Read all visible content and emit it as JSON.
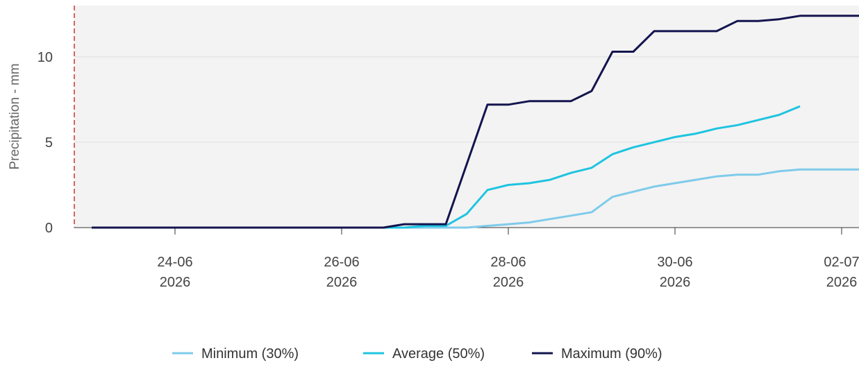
{
  "chart_data": {
    "type": "line",
    "ylabel": "Precipitation - mm",
    "ylim": [
      0,
      13
    ],
    "y_ticks": [
      0,
      5,
      10
    ],
    "x_range": [
      "2026-06-22T19:00",
      "2026-07-02T05:00"
    ],
    "x_ticks": [
      {
        "date": "2026-06-24",
        "label_day": "24-06",
        "label_year": "2026"
      },
      {
        "date": "2026-06-26",
        "label_day": "26-06",
        "label_year": "2026"
      },
      {
        "date": "2026-06-28",
        "label_day": "28-06",
        "label_year": "2026"
      },
      {
        "date": "2026-06-30",
        "label_day": "30-06",
        "label_year": "2026"
      },
      {
        "date": "2026-07-02",
        "label_day": "02-07",
        "label_year": "2026"
      }
    ],
    "grid": "horizontal",
    "legend_position": "bottom",
    "series": [
      {
        "name": "Minimum (30%)",
        "color": "#7ecbea",
        "points": [
          [
            "2026-06-23T00:00",
            0
          ],
          [
            "2026-06-27T12:00",
            0
          ],
          [
            "2026-06-27T18:00",
            0.1
          ],
          [
            "2026-06-28T00:00",
            0.2
          ],
          [
            "2026-06-28T06:00",
            0.3
          ],
          [
            "2026-06-28T12:00",
            0.5
          ],
          [
            "2026-06-28T18:00",
            0.7
          ],
          [
            "2026-06-29T00:00",
            0.9
          ],
          [
            "2026-06-29T06:00",
            1.8
          ],
          [
            "2026-06-29T12:00",
            2.1
          ],
          [
            "2026-06-29T18:00",
            2.4
          ],
          [
            "2026-06-30T00:00",
            2.6
          ],
          [
            "2026-06-30T06:00",
            2.8
          ],
          [
            "2026-06-30T12:00",
            3.0
          ],
          [
            "2026-06-30T18:00",
            3.1
          ],
          [
            "2026-07-01T00:00",
            3.1
          ],
          [
            "2026-07-01T06:00",
            3.3
          ],
          [
            "2026-07-01T12:00",
            3.4
          ],
          [
            "2026-07-02T00:00",
            3.4
          ],
          [
            "2026-07-02T06:00",
            3.4
          ]
        ]
      },
      {
        "name": "Average (50%)",
        "color": "#1ec4e0",
        "points": [
          [
            "2026-06-23T00:00",
            0
          ],
          [
            "2026-06-26T18:00",
            0
          ],
          [
            "2026-06-27T00:00",
            0.1
          ],
          [
            "2026-06-27T06:00",
            0.1
          ],
          [
            "2026-06-27T12:00",
            0.8
          ],
          [
            "2026-06-27T18:00",
            2.2
          ],
          [
            "2026-06-28T00:00",
            2.5
          ],
          [
            "2026-06-28T06:00",
            2.6
          ],
          [
            "2026-06-28T12:00",
            2.8
          ],
          [
            "2026-06-28T18:00",
            3.2
          ],
          [
            "2026-06-29T00:00",
            3.5
          ],
          [
            "2026-06-29T06:00",
            4.3
          ],
          [
            "2026-06-29T12:00",
            4.7
          ],
          [
            "2026-06-29T18:00",
            5.0
          ],
          [
            "2026-06-30T00:00",
            5.3
          ],
          [
            "2026-06-30T06:00",
            5.5
          ],
          [
            "2026-06-30T12:00",
            5.8
          ],
          [
            "2026-06-30T18:00",
            6.0
          ],
          [
            "2026-07-01T00:00",
            6.3
          ],
          [
            "2026-07-01T06:00",
            6.6
          ],
          [
            "2026-07-01T12:00",
            7.1
          ]
        ]
      },
      {
        "name": "Maximum (90%)",
        "color": "#14144f",
        "points": [
          [
            "2026-06-23T00:00",
            0
          ],
          [
            "2026-06-26T12:00",
            0
          ],
          [
            "2026-06-26T18:00",
            0.2
          ],
          [
            "2026-06-27T06:00",
            0.2
          ],
          [
            "2026-06-27T18:00",
            7.2
          ],
          [
            "2026-06-28T00:00",
            7.2
          ],
          [
            "2026-06-28T06:00",
            7.4
          ],
          [
            "2026-06-28T12:00",
            7.4
          ],
          [
            "2026-06-28T18:00",
            7.4
          ],
          [
            "2026-06-29T00:00",
            8.0
          ],
          [
            "2026-06-29T06:00",
            10.3
          ],
          [
            "2026-06-29T12:00",
            10.3
          ],
          [
            "2026-06-29T18:00",
            11.5
          ],
          [
            "2026-06-30T00:00",
            11.5
          ],
          [
            "2026-06-30T12:00",
            11.5
          ],
          [
            "2026-06-30T18:00",
            12.1
          ],
          [
            "2026-07-01T00:00",
            12.1
          ],
          [
            "2026-07-01T06:00",
            12.2
          ],
          [
            "2026-07-01T12:00",
            12.4
          ],
          [
            "2026-07-02T06:00",
            12.4
          ]
        ]
      }
    ]
  }
}
